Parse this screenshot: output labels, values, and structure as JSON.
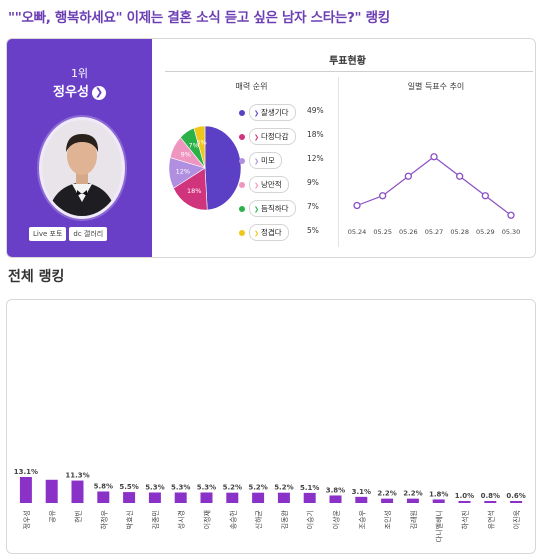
{
  "header": {
    "title": "\"\"오빠, 행복하세요\" 이제는 결혼 소식 듣고 싶은 남자 스타는?\" 랭킹"
  },
  "top_card": {
    "rank_label": "1위",
    "winner_name": "정우성",
    "arrow_icon": "chevron-right-icon",
    "buttons": [
      {
        "label": "Live 포토"
      },
      {
        "label": "dc 갤러리"
      }
    ],
    "vote_title": "투표현황",
    "charm_title": "매력 순위",
    "daily_title": "일별 득표수 추이"
  },
  "charm": {
    "items": [
      {
        "label": "잘생기다",
        "pct": "49%",
        "value": 49,
        "color": "#5b3fc4",
        "slice_label": ""
      },
      {
        "label": "다정다감",
        "pct": "18%",
        "value": 18,
        "color": "#d0347d",
        "slice_label": "18%"
      },
      {
        "label": "미모",
        "pct": "12%",
        "value": 12,
        "color": "#b08fe0",
        "slice_label": "12%"
      },
      {
        "label": "낭만적",
        "pct": "9%",
        "value": 9,
        "color": "#ee95c0",
        "slice_label": "9%"
      },
      {
        "label": "듬직하다",
        "pct": "7%",
        "value": 7,
        "color": "#2ab14a",
        "slice_label": "7%"
      },
      {
        "label": "정겹다",
        "pct": "5%",
        "value": 5,
        "color": "#efc61c",
        "slice_label": "5%"
      }
    ]
  },
  "daily": {
    "dates": [
      "05.24",
      "05.25",
      "05.26",
      "05.27",
      "05.28",
      "05.29",
      "05.30"
    ],
    "values": [
      2,
      3,
      5,
      7,
      5,
      3,
      1
    ],
    "color": "#8a4fc6"
  },
  "overall": {
    "section_title": "전체 랭킹",
    "bar_color": "#8a32c8",
    "bars": [
      {
        "name": "정우성",
        "label": "13.1%",
        "value": 13.1
      },
      {
        "name": "공유",
        "label": "",
        "value": 11.7
      },
      {
        "name": "현빈",
        "label": "11.3%",
        "value": 11.3
      },
      {
        "name": "하정우",
        "label": "5.8%",
        "value": 5.8
      },
      {
        "name": "박효신",
        "label": "5.5%",
        "value": 5.5
      },
      {
        "name": "김종민",
        "label": "5.3%",
        "value": 5.3
      },
      {
        "name": "성시경",
        "label": "5.3%",
        "value": 5.3
      },
      {
        "name": "이정재",
        "label": "5.3%",
        "value": 5.3
      },
      {
        "name": "송승헌",
        "label": "5.2%",
        "value": 5.2
      },
      {
        "name": "신하균",
        "label": "5.2%",
        "value": 5.2
      },
      {
        "name": "김동완",
        "label": "5.2%",
        "value": 5.2
      },
      {
        "name": "이승기",
        "label": "5.1%",
        "value": 5.1
      },
      {
        "name": "이상윤",
        "label": "3.8%",
        "value": 3.8
      },
      {
        "name": "조승우",
        "label": "3.1%",
        "value": 3.1
      },
      {
        "name": "조인성",
        "label": "2.2%",
        "value": 2.2
      },
      {
        "name": "김래원",
        "label": "2.2%",
        "value": 2.2
      },
      {
        "name": "다니엘헤니",
        "label": "1.8%",
        "value": 1.8
      },
      {
        "name": "하석진",
        "label": "1.0%",
        "value": 1.0
      },
      {
        "name": "유연석",
        "label": "0.8%",
        "value": 0.8
      },
      {
        "name": "이진욱",
        "label": "0.6%",
        "value": 0.6
      }
    ]
  }
}
